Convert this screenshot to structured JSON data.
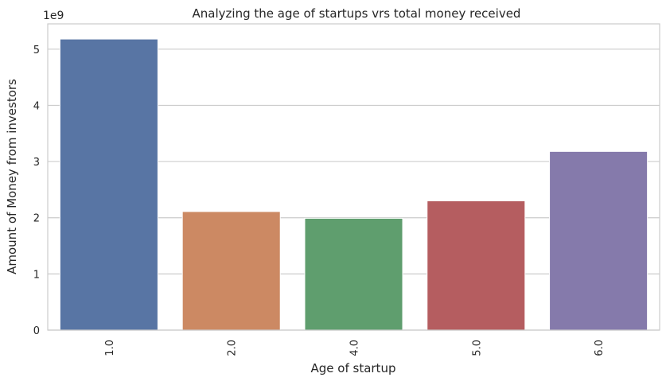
{
  "chart_data": {
    "type": "bar",
    "title": "Analyzing the age of startups vrs total money received",
    "xlabel": "Age of startup",
    "ylabel": "Amount of Money from investors",
    "y_offset_label": "1e9",
    "categories": [
      "1.0",
      "2.0",
      "4.0",
      "5.0",
      "6.0"
    ],
    "values": [
      5.18,
      2.11,
      1.99,
      2.3,
      3.18
    ],
    "colors": [
      "#5875a4",
      "#cc8963",
      "#5f9e6e",
      "#b55d60",
      "#857aab"
    ],
    "yticks": [
      "0",
      "1",
      "2",
      "3",
      "4",
      "5"
    ],
    "ylim": [
      0,
      5.45
    ],
    "grid": true,
    "legend": "none"
  }
}
